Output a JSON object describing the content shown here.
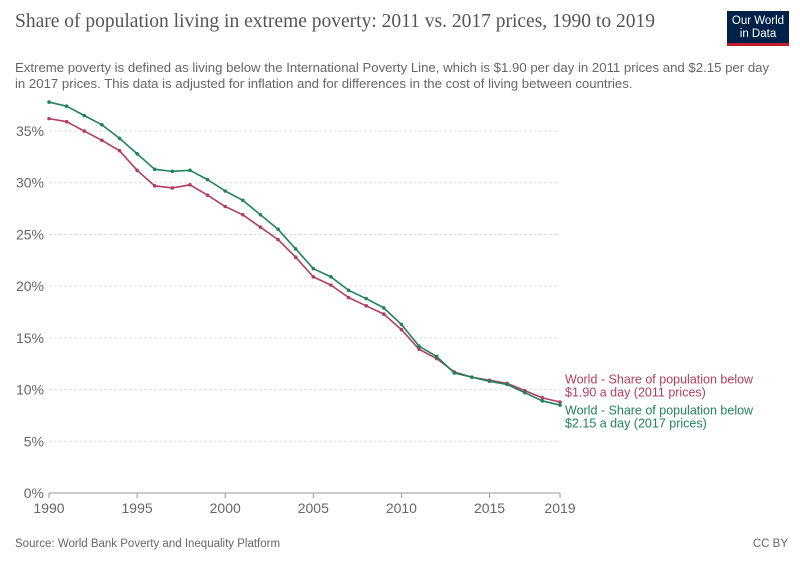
{
  "header": {
    "title": "Share of population living in extreme poverty: 2011 vs. 2017 prices, 1990 to 2019",
    "subtitle": "Extreme poverty is defined as living below the International Poverty Line, which is $1.90 per day in 2011 prices and $2.15 per day in 2017 prices. This data is adjusted for inflation and for differences in the cost of living between countries."
  },
  "logo": {
    "line1": "Our World",
    "line2": "in Data"
  },
  "footer": {
    "source": "Source: World Bank Poverty and Inequality Platform",
    "license": "CC BY"
  },
  "chart_data": {
    "type": "line",
    "x": [
      1990,
      1991,
      1992,
      1993,
      1994,
      1995,
      1996,
      1997,
      1998,
      1999,
      2000,
      2001,
      2002,
      2003,
      2004,
      2005,
      2006,
      2007,
      2008,
      2009,
      2010,
      2011,
      2012,
      2013,
      2014,
      2015,
      2016,
      2017,
      2018,
      2019
    ],
    "series": [
      {
        "name": "World - Share of population below $1.90 a day (2011 prices)",
        "label_lines": [
          "World - Share of population below",
          "$1.90 a day (2011 prices)"
        ],
        "color": "#b13e61",
        "values": [
          36.2,
          35.9,
          35.0,
          34.1,
          33.1,
          31.2,
          29.7,
          29.5,
          29.8,
          28.8,
          27.7,
          26.9,
          25.7,
          24.5,
          22.8,
          20.9,
          20.1,
          18.9,
          18.1,
          17.3,
          15.8,
          13.9,
          13.0,
          11.7,
          11.2,
          10.9,
          10.6,
          9.9,
          9.2,
          8.8
        ],
        "label_value": 10.0
      },
      {
        "name": "World - Share of population below $2.15 a day (2017 prices)",
        "label_lines": [
          "World - Share of population below",
          "$2.15 a day (2017 prices)"
        ],
        "color": "#21825c",
        "values": [
          37.8,
          37.4,
          36.5,
          35.6,
          34.3,
          32.8,
          31.3,
          31.1,
          31.2,
          30.3,
          29.2,
          28.3,
          26.9,
          25.5,
          23.6,
          21.7,
          20.9,
          19.6,
          18.8,
          17.9,
          16.3,
          14.2,
          13.2,
          11.6,
          11.2,
          10.8,
          10.5,
          9.7,
          8.9,
          8.5
        ],
        "label_value": 7.0
      }
    ],
    "ylim": [
      0,
      38
    ],
    "y_ticks": [
      0,
      5,
      10,
      15,
      20,
      25,
      30,
      35
    ],
    "y_tick_labels": [
      "0%",
      "5%",
      "10%",
      "15%",
      "20%",
      "25%",
      "30%",
      "35%"
    ],
    "x_ticks": [
      1990,
      1995,
      2000,
      2005,
      2010,
      2015,
      2019
    ],
    "x_tick_labels": [
      "1990",
      "1995",
      "2000",
      "2005",
      "2010",
      "2015",
      "2019"
    ],
    "grid": "horizontal dashed",
    "legend": "inline labels at right end of lines"
  }
}
